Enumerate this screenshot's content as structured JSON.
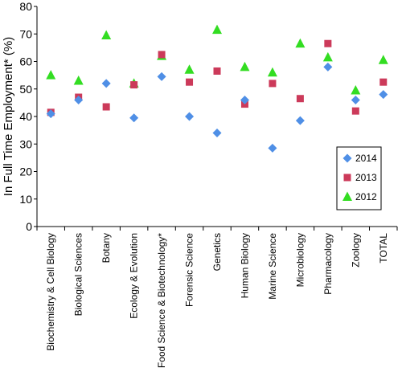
{
  "chart_data": {
    "type": "scatter",
    "ylabel": "In Full Time Employment* (%)",
    "ylim": [
      0,
      80
    ],
    "yticks": [
      0,
      10,
      20,
      30,
      40,
      50,
      60,
      70,
      80
    ],
    "grid": false,
    "legend_position": "right",
    "categories": [
      "Biochemistry & Cell Biology",
      "Biological Sciences",
      "Botany",
      "Ecology & Evolution",
      "Food Science & Biotechnology*",
      "Forensic Science",
      "Genetics",
      "Human Biology",
      "Marine Science",
      "Microbiology",
      "Pharmacology",
      "Zoology",
      "TOTAL"
    ],
    "series": [
      {
        "name": "2014",
        "marker": "diamond",
        "color": "#4f8fe6",
        "values": [
          41,
          46,
          52,
          39.5,
          54.5,
          40,
          34,
          46,
          28.5,
          38.5,
          58,
          46,
          48
        ]
      },
      {
        "name": "2013",
        "marker": "square",
        "color": "#cc3a5a",
        "values": [
          41.5,
          47,
          43.5,
          51.5,
          62.5,
          52.5,
          56.5,
          44.5,
          52,
          46.5,
          66.5,
          42,
          52.5
        ]
      },
      {
        "name": "2012",
        "marker": "triangle",
        "color": "#33dd22",
        "values": [
          55,
          53,
          69.5,
          52,
          62,
          57,
          71.5,
          58,
          56,
          66.5,
          61.5,
          49.5,
          60.5
        ]
      }
    ]
  }
}
